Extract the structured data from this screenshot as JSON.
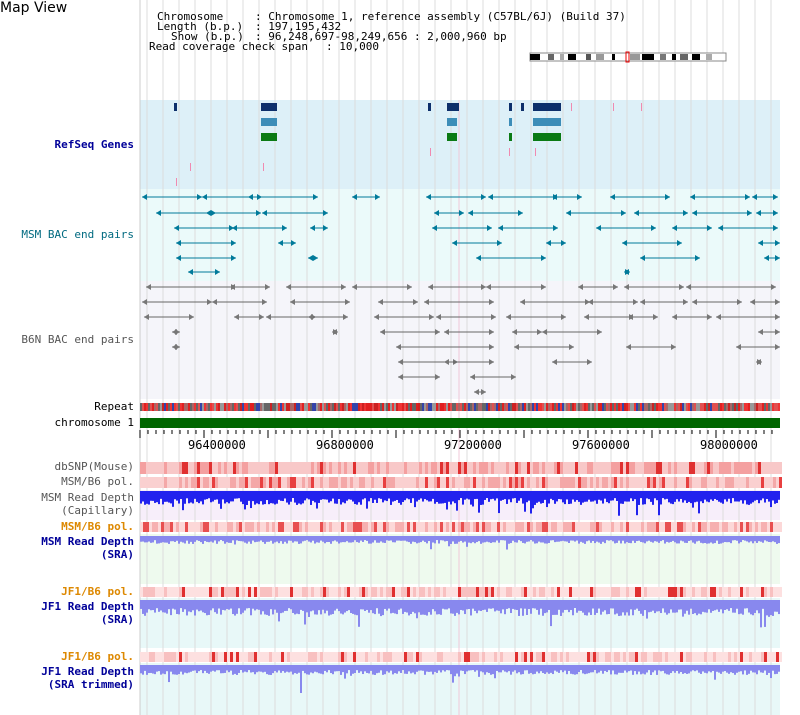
{
  "view_title": "Map View",
  "info": {
    "chromosome_label": "Chromosome",
    "chromosome_value": ": Chromosome 1, reference assembly (C57BL/6J) (Build 37)",
    "length_label": "Length (b.p.)",
    "length_value": ": 197,195,432",
    "show_label": "Show (b.p.)",
    "show_value": ": 96,248,697-98,249,656 : 2,000,960 bp",
    "coverage_label": "Read coverage check span",
    "coverage_value": ": 10,000"
  },
  "tracks": {
    "refseq": "RefSeq Genes",
    "msm_bac": "MSM BAC end pairs",
    "b6n_bac": "B6N BAC end pairs",
    "repeat": "Repeat",
    "chromosome": "chromosome 1",
    "dbsnp": "dbSNP(Mouse)",
    "msm_b6_pol_1": "MSM/B6 pol.",
    "msm_read_depth_cap_1": "MSM Read Depth",
    "msm_read_depth_cap_2": "(Capillary)",
    "msm_b6_pol_2": "MSM/B6 pol.",
    "msm_read_depth_sra_1": "MSM Read Depth",
    "msm_read_depth_sra_2": "(SRA)",
    "jf1_b6_pol_1": "JF1/B6 pol.",
    "jf1_read_depth_sra_1": "JF1 Read Depth",
    "jf1_read_depth_sra_2": "(SRA)",
    "jf1_b6_pol_2": "JF1/B6 pol.",
    "jf1_read_depth_trim_1": "JF1 Read Depth",
    "jf1_read_depth_trim_2": "(SRA trimmed)"
  },
  "axis": {
    "ticks": [
      "96400000",
      "96800000",
      "97200000",
      "97600000",
      "98000000"
    ]
  },
  "colors": {
    "refseq_bg": "#ddf0f8",
    "msm_bg": "#ebfafa",
    "b6n_bg": "#f5f5fa",
    "chromosome_bar": "#006600",
    "navy_label": "#000099",
    "orange_label": "#dd8800",
    "depth_blue": "#2222ee",
    "depth_light": "#8888ee"
  }
}
